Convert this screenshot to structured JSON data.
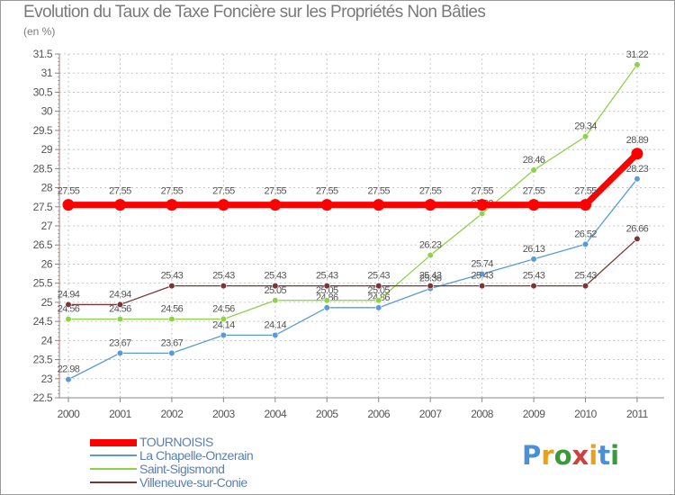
{
  "title": "Evolution du Taux de Taxe Foncière sur les Propriétés Non Bâties",
  "unit": "(en %)",
  "brand": {
    "letters": [
      "P",
      "r",
      "o",
      "x",
      "i",
      "t",
      "i"
    ],
    "colors": [
      "#4a90d9",
      "#e8a020",
      "#3a9a3a",
      "#d04040",
      "#e8a020",
      "#4a90d9",
      "#3a9a3a"
    ]
  },
  "chart_data": {
    "type": "line",
    "title": "Evolution du Taux de Taxe Foncière sur les Propriétés Non Bâties",
    "ylabel": "(en %)",
    "xlabel": "",
    "categories": [
      "2000",
      "2001",
      "2002",
      "2003",
      "2004",
      "2005",
      "2006",
      "2007",
      "2008",
      "2009",
      "2010",
      "2011"
    ],
    "ylim": [
      22.5,
      31.5
    ],
    "yticks": [
      22.5,
      23,
      23.5,
      24,
      24.5,
      25,
      25.5,
      26,
      26.5,
      27,
      27.5,
      28,
      28.5,
      29,
      29.5,
      30,
      30.5,
      31,
      31.5
    ],
    "grid": true,
    "legend_position": "bottom-left",
    "series": [
      {
        "name": "TOURNOISIS",
        "color": "#ff0000",
        "values": [
          27.55,
          27.55,
          27.55,
          27.55,
          27.55,
          27.55,
          27.55,
          27.55,
          27.55,
          27.55,
          27.55,
          28.89
        ]
      },
      {
        "name": "La Chapelle-Onzerain",
        "color": "#5b9bd5",
        "values": [
          22.98,
          23.67,
          23.67,
          24.14,
          24.14,
          24.86,
          24.86,
          25.36,
          25.74,
          26.13,
          26.52,
          28.23
        ]
      },
      {
        "name": "Saint-Sigismond",
        "color": "#8ed14a",
        "values": [
          24.56,
          24.56,
          24.56,
          24.56,
          25.05,
          25.05,
          25.05,
          26.23,
          27.32,
          28.46,
          29.34,
          31.22
        ]
      },
      {
        "name": "Villeneuve-sur-Conie",
        "color": "#7b3535",
        "values": [
          24.94,
          24.94,
          25.43,
          25.43,
          25.43,
          25.43,
          25.43,
          25.43,
          25.43,
          25.43,
          25.43,
          26.66
        ]
      }
    ]
  }
}
